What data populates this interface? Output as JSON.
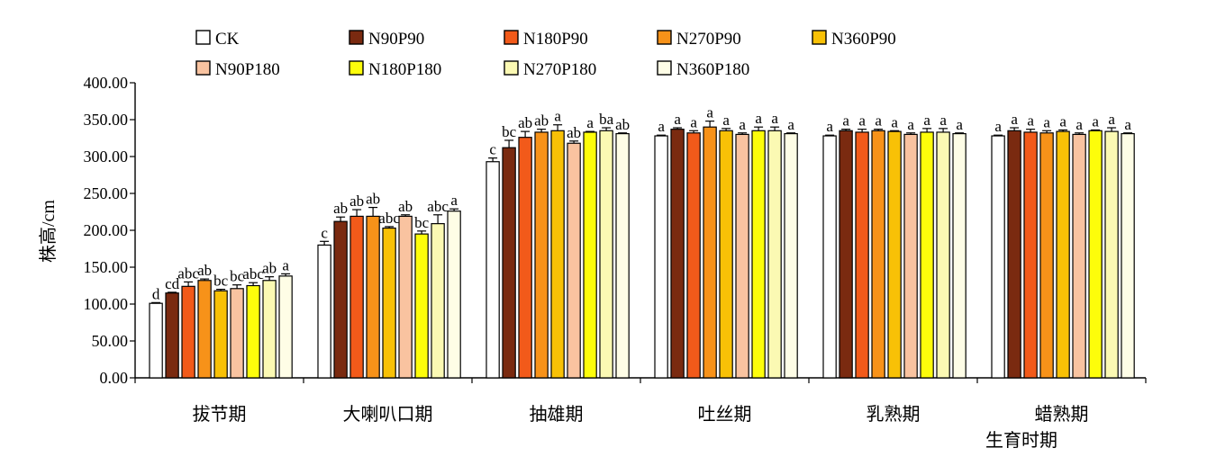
{
  "chart_data": {
    "type": "bar",
    "title": "",
    "xlabel": "生育时期",
    "ylabel": "株高/cm",
    "ylim": [
      0,
      400
    ],
    "yticks": [
      "0.00",
      "50.00",
      "100.00",
      "150.00",
      "200.00",
      "250.00",
      "300.00",
      "350.00",
      "400.00"
    ],
    "grid": false,
    "legend_position": "top",
    "categories": [
      "拔节期",
      "大喇叭口期",
      "抽雄期",
      "吐丝期",
      "乳熟期",
      "蜡熟期"
    ],
    "series": [
      {
        "name": "CK",
        "color": "#ffffff",
        "values": [
          101,
          180,
          293,
          328,
          328,
          328
        ],
        "errors": [
          1,
          5,
          5,
          1,
          1,
          1
        ],
        "labels": [
          "d",
          "c",
          "c",
          "a",
          "a",
          "a"
        ]
      },
      {
        "name": "N90P90",
        "color": "#7a2a10",
        "values": [
          115,
          212,
          312,
          337,
          335,
          335
        ],
        "errors": [
          1,
          6,
          10,
          2,
          2,
          4
        ],
        "labels": [
          "cd",
          "ab",
          "bc",
          "a",
          "a",
          "a"
        ]
      },
      {
        "name": "N180P90",
        "color": "#f25a1a",
        "values": [
          124,
          219,
          326,
          332,
          333,
          333
        ],
        "errors": [
          6,
          9,
          8,
          3,
          4,
          4
        ],
        "labels": [
          "abc",
          "ab",
          "ab",
          "a",
          "a",
          "a"
        ]
      },
      {
        "name": "N270P90",
        "color": "#f79219",
        "values": [
          132,
          219,
          333,
          340,
          335,
          332
        ],
        "errors": [
          2,
          12,
          4,
          8,
          2,
          3
        ],
        "labels": [
          "ab",
          "ab",
          "ab",
          "a",
          "a",
          "a"
        ]
      },
      {
        "name": "N360P90",
        "color": "#f8c106",
        "values": [
          118,
          203,
          335,
          335,
          334,
          334
        ],
        "errors": [
          2,
          2,
          8,
          3,
          1,
          2
        ],
        "labels": [
          "bc",
          "abc",
          "a",
          "a",
          "a",
          "a"
        ]
      },
      {
        "name": "N90P180",
        "color": "#f9c3a0",
        "values": [
          121,
          219,
          318,
          330,
          330,
          330
        ],
        "errors": [
          5,
          2,
          3,
          2,
          2,
          2
        ],
        "labels": [
          "bc",
          "ab",
          "ab",
          "a",
          "a",
          "a"
        ]
      },
      {
        "name": "N180P180",
        "color": "#fdfd0b",
        "values": [
          125,
          195,
          333,
          335,
          333,
          335
        ],
        "errors": [
          4,
          4,
          1,
          5,
          5,
          1
        ],
        "labels": [
          "abc",
          "bc",
          "a",
          "a",
          "a",
          "a"
        ]
      },
      {
        "name": "N270P180",
        "color": "#fbf9b3",
        "values": [
          132,
          209,
          335,
          335,
          333,
          334
        ],
        "errors": [
          5,
          12,
          4,
          5,
          5,
          5
        ],
        "labels": [
          "ab",
          "abc",
          "ba",
          "a",
          "a",
          "a"
        ]
      },
      {
        "name": "N360P180",
        "color": "#fefde6",
        "values": [
          138,
          226,
          331,
          331,
          331,
          331
        ],
        "errors": [
          3,
          3,
          1,
          1,
          1,
          1
        ],
        "labels": [
          "a",
          "a",
          "ab",
          "a",
          "a",
          "a"
        ]
      }
    ]
  }
}
